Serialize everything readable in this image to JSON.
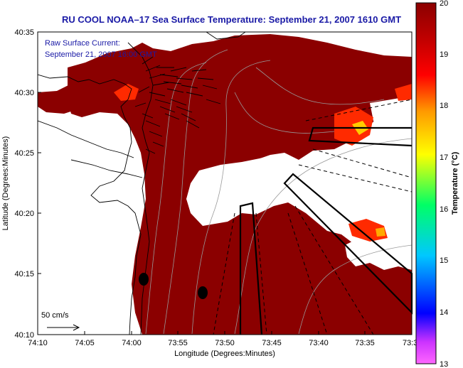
{
  "title": "RU COOL  NOAA–17  Sea Surface Temperature:  September 21, 2007 1610 GMT",
  "annotation": {
    "line1": "Raw Surface Current:",
    "line2": "September 21, 2007 16:00 GMT"
  },
  "scale_label": "50 cm/s",
  "x_axis": {
    "label": "Longitude (Degrees:Minutes)",
    "ticks": [
      "74:10",
      "74:05",
      "74:00",
      "73:55",
      "73:50",
      "73:45",
      "73:40",
      "73:35",
      "73:3"
    ]
  },
  "y_axis": {
    "label": "Latitude (Degrees:Minutes)",
    "ticks": [
      "40:35",
      "40:30",
      "40:25",
      "40:20",
      "40:15",
      "40:10"
    ]
  },
  "colorbar": {
    "label": "Temperature (°C)",
    "ticks": [
      "20",
      "19",
      "18",
      "17",
      "16",
      "15",
      "14",
      "13"
    ],
    "min": 13,
    "max": 20,
    "colors": [
      "#ff66ff",
      "#0000ff",
      "#00c8ff",
      "#00ff66",
      "#ffff00",
      "#ff9900",
      "#ff0000",
      "#8b0000"
    ]
  },
  "colors": {
    "sst_water": "#8b0000",
    "warm_patch": "#ff2a00",
    "hot_patch": "#ffcc00",
    "title_text": "#1a1aa6"
  }
}
